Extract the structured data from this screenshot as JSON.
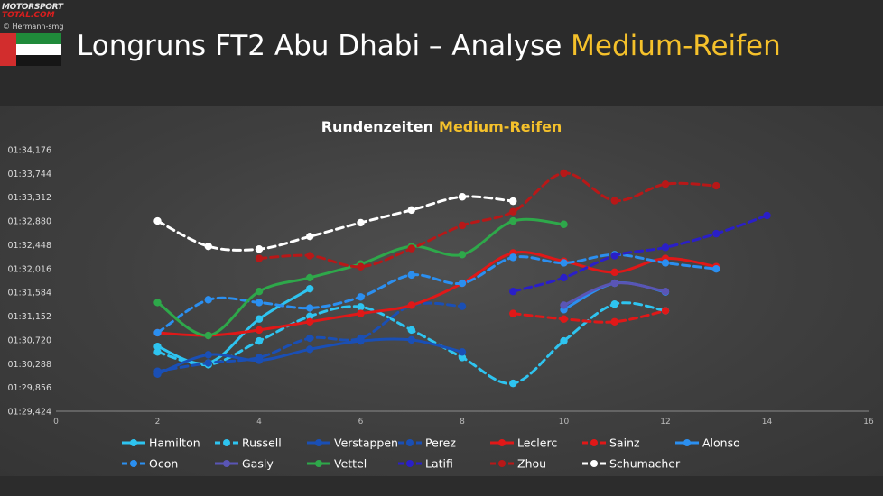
{
  "header": {
    "logo_top": "MOTORSPORT",
    "logo_bottom": "TOTAL.COM",
    "credit": "© Hermann-smg",
    "title_main": "Longruns FT2 Abu Dhabi – Analyse",
    "title_highlight": "Medium-Reifen"
  },
  "colors": {
    "background": "#2e2e2e",
    "highlight": "#f5c12b",
    "title": "#ffffff"
  },
  "chart_data": {
    "type": "line",
    "title": "Rundenzeiten",
    "title_highlight": "Medium-Reifen",
    "xlim": [
      0,
      16
    ],
    "x_ticks": [
      "0",
      "2",
      "4",
      "6",
      "8",
      "10",
      "12",
      "14",
      "16"
    ],
    "ylim": [
      89.424,
      94.176
    ],
    "y_ticks": [
      "01:29,424",
      "01:29,856",
      "01:30,288",
      "01:30,720",
      "01:31,152",
      "01:31,584",
      "01:32,016",
      "01:32,448",
      "01:32,880",
      "01:33,312",
      "01:33,744",
      "01:34,176"
    ],
    "grid": false,
    "legend": "bottom",
    "series": [
      {
        "name": "Hamilton",
        "color": "#2ec4f0",
        "dash": false,
        "x": [
          2,
          3,
          4,
          5
        ],
        "y": [
          90.6,
          90.3,
          91.1,
          91.65
        ]
      },
      {
        "name": "Russell",
        "color": "#2ec4f0",
        "dash": true,
        "x": [
          2,
          3,
          4,
          5,
          6,
          7,
          8,
          9,
          10,
          11,
          12
        ],
        "y": [
          90.5,
          90.27,
          90.7,
          91.15,
          91.32,
          90.9,
          90.4,
          89.93,
          90.7,
          91.37,
          91.25
        ]
      },
      {
        "name": "Verstappen",
        "color": "#1a4fb5",
        "dash": false,
        "x": [
          2,
          3,
          4,
          5,
          6,
          7,
          8
        ],
        "y": [
          90.1,
          90.45,
          90.35,
          90.55,
          90.7,
          90.72,
          90.5
        ]
      },
      {
        "name": "Perez",
        "color": "#1a4fb5",
        "dash": true,
        "x": [
          2,
          3,
          4,
          5,
          6,
          7,
          8
        ],
        "y": [
          90.15,
          90.3,
          90.4,
          90.75,
          90.75,
          91.35,
          91.33
        ]
      },
      {
        "name": "Leclerc",
        "color": "#e01818",
        "dash": false,
        "x": [
          2,
          3,
          4,
          5,
          6,
          7,
          8,
          9,
          10,
          11,
          12,
          13
        ],
        "y": [
          90.85,
          90.8,
          90.9,
          91.05,
          91.2,
          91.35,
          91.75,
          92.3,
          92.15,
          91.95,
          92.2,
          92.05
        ]
      },
      {
        "name": "Sainz",
        "color": "#e01818",
        "dash": true,
        "x": [
          9,
          10,
          11,
          12
        ],
        "y": [
          91.2,
          91.1,
          91.05,
          91.25
        ]
      },
      {
        "name": "Alonso",
        "color": "#2b8ff0",
        "dash": false,
        "x": [
          10,
          11,
          12
        ],
        "y": [
          91.27,
          91.75,
          91.59
        ]
      },
      {
        "name": "Ocon",
        "color": "#2b8ff0",
        "dash": true,
        "x": [
          2,
          3,
          4,
          5,
          6,
          7,
          8,
          9,
          10,
          11,
          12,
          13
        ],
        "y": [
          90.85,
          91.45,
          91.4,
          91.3,
          91.5,
          91.9,
          91.75,
          92.22,
          92.12,
          92.27,
          92.12,
          92.01
        ]
      },
      {
        "name": "Gasly",
        "color": "#5a55b5",
        "dash": false,
        "x": [
          10,
          11,
          12
        ],
        "y": [
          91.35,
          91.75,
          91.6
        ]
      },
      {
        "name": "Vettel",
        "color": "#2ea84a",
        "dash": false,
        "x": [
          2,
          3,
          4,
          5,
          6,
          7,
          8,
          9,
          10
        ],
        "y": [
          91.4,
          90.8,
          91.6,
          91.85,
          92.1,
          92.42,
          92.27,
          92.88,
          92.82
        ]
      },
      {
        "name": "Latifi",
        "color": "#2a1fc8",
        "dash": true,
        "x": [
          9,
          10,
          11,
          12,
          13,
          14
        ],
        "y": [
          91.6,
          91.85,
          92.25,
          92.4,
          92.65,
          92.98
        ]
      },
      {
        "name": "Zhou",
        "color": "#b81818",
        "dash": true,
        "x": [
          4,
          5,
          6,
          7,
          8,
          9,
          10,
          11,
          12,
          13
        ],
        "y": [
          92.2,
          92.25,
          92.05,
          92.38,
          92.8,
          93.05,
          93.75,
          93.25,
          93.55,
          93.52
        ]
      },
      {
        "name": "Schumacher",
        "color": "#ffffff",
        "dash": true,
        "x": [
          2,
          3,
          4,
          5,
          6,
          7,
          8,
          9
        ],
        "y": [
          92.88,
          92.42,
          92.37,
          92.6,
          92.85,
          93.08,
          93.32,
          93.24
        ]
      }
    ]
  }
}
